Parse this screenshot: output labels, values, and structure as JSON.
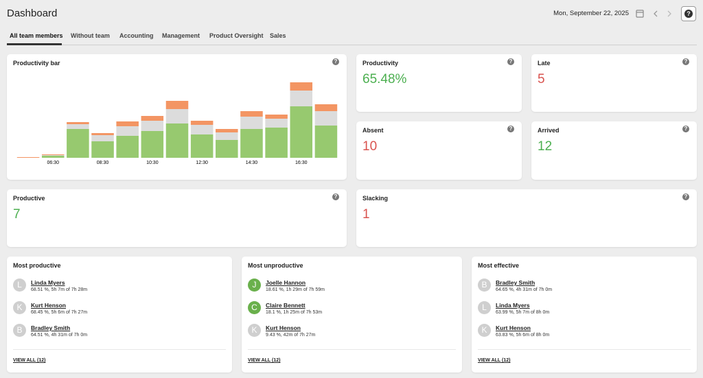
{
  "header": {
    "title": "Dashboard",
    "date": "Mon, September 22, 2025"
  },
  "help_icon": "?",
  "tabs": [
    "All team members",
    "Without team",
    "Accounting",
    "Management",
    "Product Oversight",
    "Sales"
  ],
  "chart_data": {
    "type": "bar",
    "title": "Productivity bar",
    "categories": [
      null,
      "06:30",
      null,
      "08:30",
      null,
      "10:30",
      null,
      "12:30",
      null,
      "14:30",
      null,
      "16:30",
      null
    ],
    "series": [
      {
        "color": "#97c96f",
        "values": [
          0,
          3,
          42,
          24,
          32,
          39,
          50,
          34,
          26,
          42,
          44,
          75,
          47
        ]
      },
      {
        "color": "#dcdcdc",
        "values": [
          0,
          1,
          7,
          9,
          14,
          15,
          21,
          14,
          11,
          18,
          13,
          23,
          21
        ]
      },
      {
        "color": "#f39563",
        "values": [
          1,
          1,
          3,
          3,
          7,
          7,
          12,
          6,
          5,
          8,
          6,
          12,
          10
        ]
      }
    ],
    "ylim": [
      0,
      115
    ],
    "stacked": true
  },
  "stats": [
    {
      "title": "Productivity",
      "value": "65.48%",
      "color": "#4caf50"
    },
    {
      "title": "Late",
      "value": "5",
      "color": "#d9534f"
    },
    {
      "title": "Absent",
      "value": "10",
      "color": "#d9534f"
    },
    {
      "title": "Arrived",
      "value": "12",
      "color": "#4caf50"
    },
    {
      "title": "Productive",
      "value": "7",
      "color": "#4caf50"
    },
    {
      "title": "Slacking",
      "value": "1",
      "color": "#d9534f"
    }
  ],
  "lists": [
    {
      "title": "Most productive",
      "view_all": "VIEW ALL (12)",
      "items": [
        {
          "initial": "L",
          "name": "Linda Myers",
          "detail": "68.51 %, 5h 7m of 7h 28m",
          "color": "#cfcfcf"
        },
        {
          "initial": "K",
          "name": "Kurt Henson",
          "detail": "68.45 %, 5h 6m of 7h 27m",
          "color": "#cfcfcf"
        },
        {
          "initial": "B",
          "name": "Bradley Smith",
          "detail": "64.51 %, 4h 31m of 7h 0m",
          "color": "#cfcfcf"
        }
      ]
    },
    {
      "title": "Most unproductive",
      "view_all": "VIEW ALL (12)",
      "items": [
        {
          "initial": "J",
          "name": "Joelle Hannon",
          "detail": "18.61 %, 1h 29m of 7h 59m",
          "color": "#6ab04c"
        },
        {
          "initial": "C",
          "name": "Claire Bennett",
          "detail": "18.1 %, 1h 25m of 7h 53m",
          "color": "#6ab04c"
        },
        {
          "initial": "K",
          "name": "Kurt Henson",
          "detail": "9.43 %, 42m of 7h 27m",
          "color": "#cfcfcf"
        }
      ]
    },
    {
      "title": "Most effective",
      "view_all": "VIEW ALL (12)",
      "items": [
        {
          "initial": "B",
          "name": "Bradley Smith",
          "detail": "64.65 %, 4h 31m of 7h 0m",
          "color": "#cfcfcf"
        },
        {
          "initial": "L",
          "name": "Linda Myers",
          "detail": "63.99 %, 5h 7m of 8h 0m",
          "color": "#cfcfcf"
        },
        {
          "initial": "K",
          "name": "Kurt Henson",
          "detail": "63.83 %, 5h 6m of 8h 0m",
          "color": "#cfcfcf"
        }
      ]
    }
  ]
}
